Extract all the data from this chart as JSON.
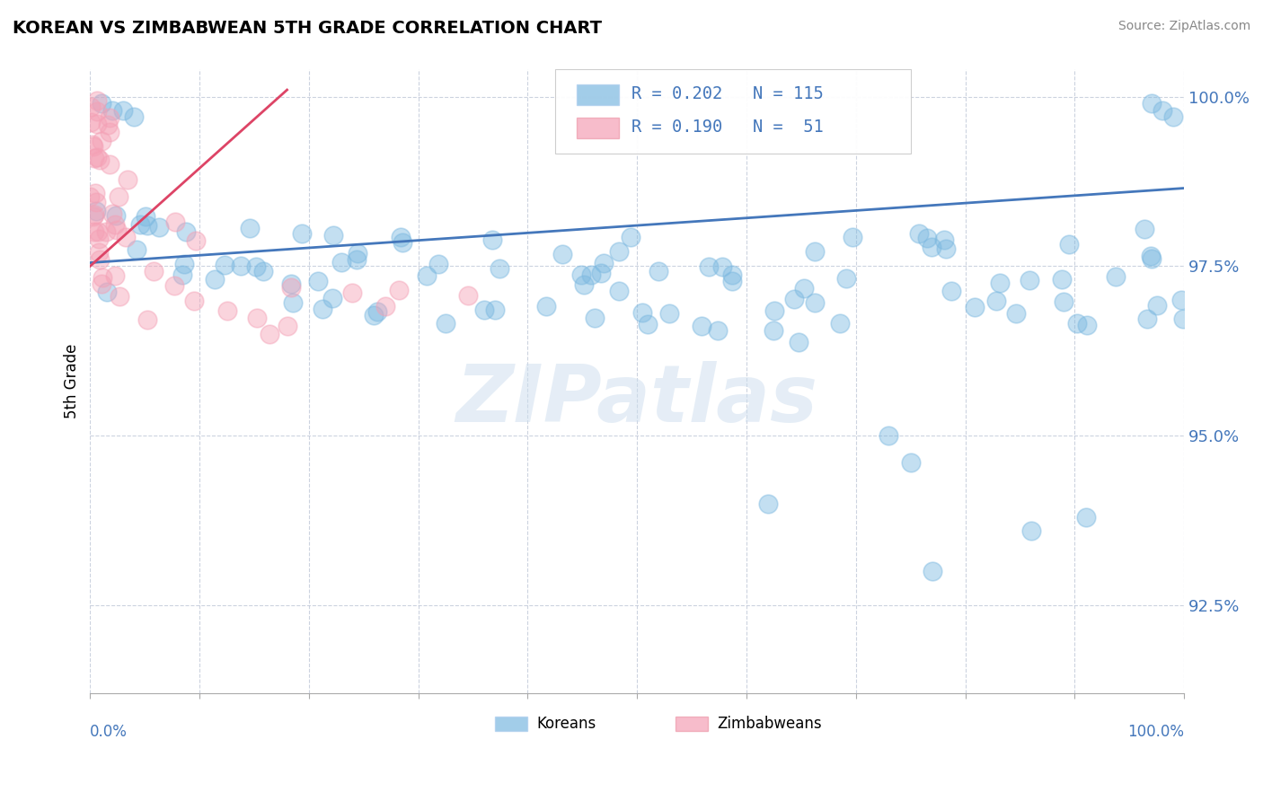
{
  "title": "KOREAN VS ZIMBABWEAN 5TH GRADE CORRELATION CHART",
  "source_text": "Source: ZipAtlas.com",
  "ylabel": "5th Grade",
  "watermark": "ZIPatlas",
  "xmin": 0.0,
  "xmax": 1.0,
  "ymin": 0.912,
  "ymax": 1.004,
  "yticks": [
    0.925,
    0.95,
    0.975,
    1.0
  ],
  "ytick_labels": [
    "92.5%",
    "95.0%",
    "97.5%",
    "100.0%"
  ],
  "korean_R": 0.202,
  "korean_N": 115,
  "zimbabwean_R": 0.19,
  "zimbabwean_N": 51,
  "korean_color": "#7bb8e0",
  "zimbabwean_color": "#f4a0b5",
  "korean_line_color": "#4477bb",
  "zimbabwean_line_color": "#dd4466",
  "tick_color": "#4477bb",
  "background_color": "#ffffff",
  "grid_color": "#c0c8d8",
  "title_fontsize": 14,
  "source_fontsize": 10,
  "korean_trendline_x0": 0.0,
  "korean_trendline_x1": 1.0,
  "korean_trendline_y0": 0.9755,
  "korean_trendline_y1": 0.9865,
  "zimbabwean_trendline_x0": 0.0,
  "zimbabwean_trendline_x1": 0.18,
  "zimbabwean_trendline_y0": 0.975,
  "zimbabwean_trendline_y1": 1.001
}
